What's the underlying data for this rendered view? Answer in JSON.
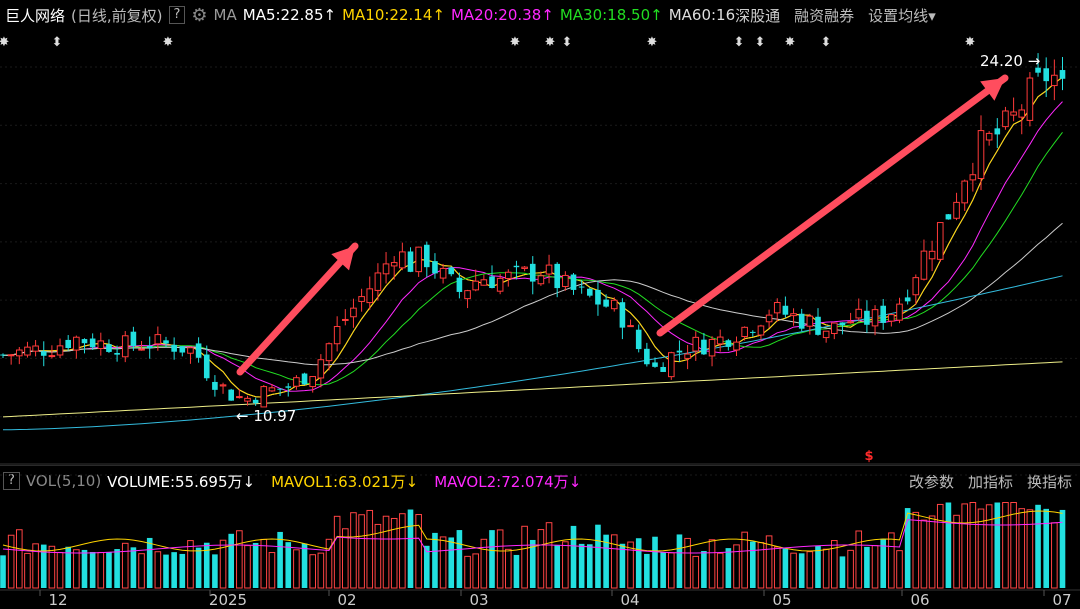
{
  "header": {
    "stock_name": "巨人网络",
    "mode": "(日线,前复权)",
    "help_label": "?",
    "ma_label": "MA",
    "ma5": "MA5:22.85",
    "ma10": "MA10:22.14",
    "ma20": "MA20:20.38",
    "ma30": "MA30:18.50",
    "ma60": "MA60:16",
    "link_sgt": "深股通",
    "link_rzrq": "融资融券",
    "link_settings": "设置均线",
    "up_arrow": "↑",
    "down_arrow": "↓",
    "dropdown_arrow": "▾",
    "colors": {
      "ma5": "#ffffff",
      "ma10": "#ffd400",
      "ma20": "#ff28ff",
      "ma30": "#22dd22",
      "ma60": "#dddddd"
    }
  },
  "volume_header": {
    "help_label": "?",
    "vol_label": "VOL(5,10)",
    "volume": "VOLUME:55.695万",
    "mavol1": "MAVOL1:63.021万",
    "mavol2": "MAVOL2:72.074万",
    "btn_params": "改参数",
    "btn_add": "加指标",
    "btn_switch": "换指标"
  },
  "chart_data": {
    "type": "candlestick",
    "price_range": [
      9.5,
      25.5
    ],
    "high_label": "24.20",
    "low_label": "10.97",
    "high_value": 24.2,
    "low_value": 10.97,
    "grid": true,
    "x_labels": [
      "12",
      "2025",
      "02",
      "03",
      "04",
      "05",
      "06",
      "07"
    ],
    "event_markers": [
      {
        "x": 4,
        "sym": "✸"
      },
      {
        "x": 57,
        "sym": "⬍"
      },
      {
        "x": 168,
        "sym": "✸"
      },
      {
        "x": 515,
        "sym": "✸"
      },
      {
        "x": 550,
        "sym": "✸"
      },
      {
        "x": 567,
        "sym": "⬍"
      },
      {
        "x": 652,
        "sym": "✸"
      },
      {
        "x": 739,
        "sym": "⬍"
      },
      {
        "x": 760,
        "sym": "⬍"
      },
      {
        "x": 790,
        "sym": "✸"
      },
      {
        "x": 826,
        "sym": "⬍"
      },
      {
        "x": 970,
        "sym": "✸"
      }
    ],
    "s_marker": "S",
    "price_key_points": [
      [
        0,
        12.8
      ],
      [
        25,
        13.0
      ],
      [
        50,
        13.1
      ],
      [
        75,
        13.5
      ],
      [
        100,
        13.3
      ],
      [
        125,
        13.2
      ],
      [
        150,
        13.3
      ],
      [
        175,
        13.2
      ],
      [
        195,
        13.0
      ],
      [
        210,
        12.0
      ],
      [
        230,
        11.3
      ],
      [
        245,
        11.1
      ],
      [
        265,
        11.4
      ],
      [
        290,
        11.6
      ],
      [
        315,
        12.3
      ],
      [
        340,
        14.0
      ],
      [
        360,
        15.0
      ],
      [
        380,
        16.0
      ],
      [
        395,
        17.0
      ],
      [
        410,
        16.4
      ],
      [
        425,
        16.7
      ],
      [
        440,
        16.0
      ],
      [
        460,
        15.3
      ],
      [
        480,
        15.9
      ],
      [
        500,
        15.8
      ],
      [
        520,
        15.9
      ],
      [
        540,
        16.2
      ],
      [
        560,
        15.6
      ],
      [
        580,
        15.2
      ],
      [
        600,
        14.9
      ],
      [
        620,
        14.5
      ],
      [
        640,
        13.0
      ],
      [
        655,
        12.3
      ],
      [
        670,
        12.8
      ],
      [
        690,
        13.2
      ],
      [
        710,
        13.3
      ],
      [
        730,
        13.6
      ],
      [
        750,
        14.0
      ],
      [
        770,
        14.6
      ],
      [
        790,
        14.4
      ],
      [
        810,
        14.1
      ],
      [
        830,
        13.8
      ],
      [
        850,
        14.2
      ],
      [
        870,
        14.2
      ],
      [
        890,
        14.5
      ],
      [
        905,
        15.2
      ],
      [
        920,
        16.5
      ],
      [
        935,
        17.5
      ],
      [
        950,
        18.5
      ],
      [
        965,
        20.0
      ],
      [
        980,
        21.0
      ],
      [
        995,
        21.4
      ],
      [
        1010,
        21.9
      ],
      [
        1025,
        22.8
      ],
      [
        1040,
        23.5
      ],
      [
        1050,
        24.0
      ],
      [
        1065,
        23.0
      ]
    ],
    "candles": {
      "start_x": 3,
      "spacing": 8.15
    },
    "ma_params": [
      5,
      10,
      20,
      30,
      60,
      120,
      250
    ],
    "ma_colors": [
      "#ffffff",
      "#ffd400",
      "#ff28ff",
      "#22dd22",
      "#cccccc",
      "#33bbdd",
      "#eeee88"
    ],
    "volume": {
      "range": [
        0,
        100
      ],
      "bar_up_color": "#ff4444",
      "bar_down_color": "#22e0e0"
    }
  }
}
